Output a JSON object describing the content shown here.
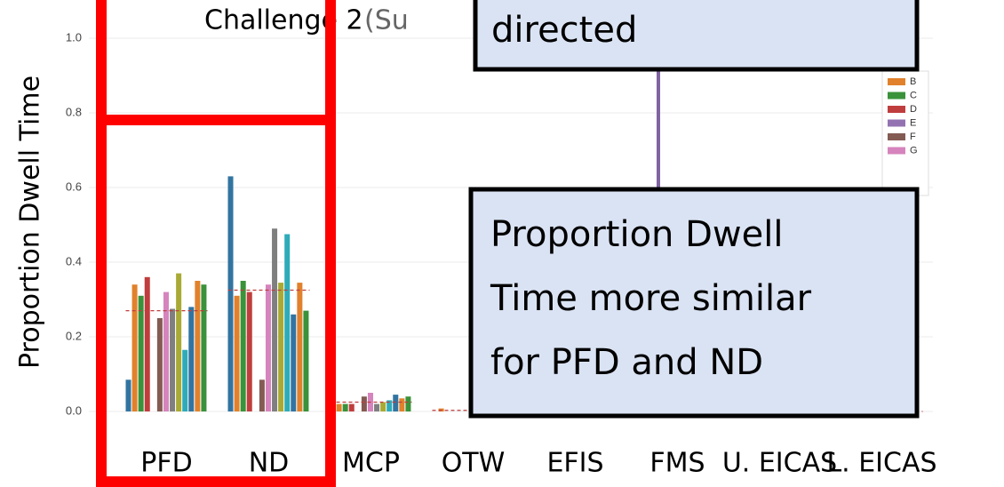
{
  "chart_data": {
    "type": "bar",
    "title": "Challenge 2",
    "subtitle": "(Su",
    "y_label": "Proportion Dwell Time",
    "categories": [
      "PFD",
      "ND",
      "MCP",
      "OTW",
      "EFIS",
      "FMS",
      "U. EICAS",
      "L. EICAS"
    ],
    "series": [
      {
        "color": "#3274a1",
        "values": [
          0.085,
          0.63,
          0.02,
          0,
          0,
          0,
          0,
          0
        ]
      },
      {
        "name": "B",
        "color": "#e1812c",
        "values": [
          0.34,
          0.31,
          0.02,
          0.008,
          0,
          0,
          0,
          0
        ]
      },
      {
        "name": "C",
        "color": "#3a923a",
        "values": [
          0.31,
          0.35,
          0.02,
          0,
          0,
          0,
          0,
          0
        ]
      },
      {
        "name": "D",
        "color": "#c03d3e",
        "values": [
          0.36,
          0.32,
          0.02,
          0,
          0,
          0,
          0,
          0
        ]
      },
      {
        "name": "E",
        "color": "#9372b2",
        "values": [
          0,
          0,
          0,
          0,
          0,
          0,
          0,
          0
        ]
      },
      {
        "name": "F",
        "color": "#845b53",
        "values": [
          0.25,
          0.085,
          0.04,
          0,
          0,
          0,
          0,
          0
        ]
      },
      {
        "name": "G",
        "color": "#d684bd",
        "values": [
          0.32,
          0.34,
          0.05,
          0,
          0,
          0,
          0,
          0
        ]
      },
      {
        "color": "#7f7f7f",
        "values": [
          0.275,
          0.49,
          0.02,
          0,
          0,
          0,
          0,
          0
        ]
      },
      {
        "color": "#a9aa35",
        "values": [
          0.37,
          0.345,
          0.025,
          0,
          0,
          0,
          0,
          0
        ]
      },
      {
        "color": "#2eabb8",
        "values": [
          0.165,
          0.475,
          0.03,
          0,
          0,
          0,
          0,
          0
        ]
      },
      {
        "color": "#3274a1",
        "values": [
          0.28,
          0.26,
          0.045,
          0,
          0,
          0,
          0,
          0
        ]
      },
      {
        "color": "#e1812c",
        "values": [
          0.35,
          0.345,
          0.035,
          0,
          0,
          0,
          0,
          0
        ]
      },
      {
        "color": "#3a923a",
        "values": [
          0.34,
          0.27,
          0.04,
          0,
          0,
          0,
          0,
          0
        ]
      }
    ],
    "means": [
      0.27,
      0.325,
      0.025,
      0.003,
      0,
      0,
      0,
      0
    ],
    "mean_color": "#c03d3e",
    "ylim": [
      0,
      1.05
    ],
    "yticks": [
      {
        "value": 0,
        "label": "0.0"
      },
      {
        "value": 0.2,
        "label": "0.2"
      },
      {
        "value": 0.4,
        "label": "0.4"
      },
      {
        "value": 0.6,
        "label": "0.6"
      },
      {
        "value": 0.8,
        "label": "0.8"
      },
      {
        "value": 1,
        "label": "1.0"
      }
    ],
    "grid": true,
    "legend": "upper right"
  },
  "annotations": [
    {
      "lines": [
        "directed"
      ]
    },
    {
      "lines": [
        "Proportion Dwell",
        "Time more similar",
        "for PFD and ND"
      ]
    }
  ]
}
